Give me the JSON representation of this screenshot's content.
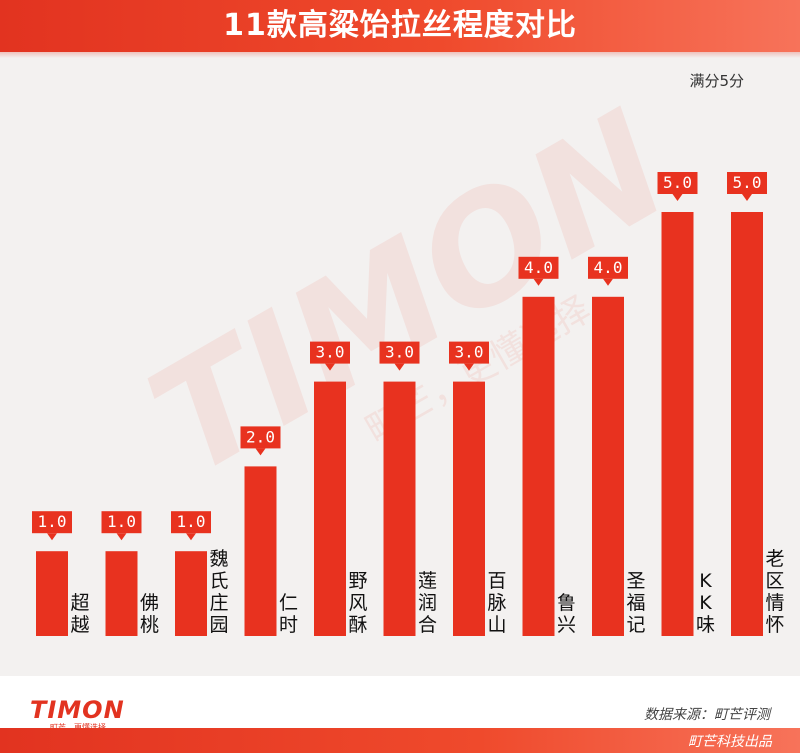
{
  "header": {
    "title": "11款高粱饴拉丝程度对比"
  },
  "unit_note": "满分5分",
  "watermark": {
    "brand": "TIMON",
    "slogan": "町芒，更懂选择。"
  },
  "colors": {
    "accent": "#e8321f",
    "label_bg": "#e8321f",
    "label_text": "#ffffff",
    "background": "#f3f1f0"
  },
  "chart_data": {
    "type": "bar",
    "title": "11款高粱饴拉丝程度对比",
    "categories": [
      "超越",
      "佛桃",
      "魏氏庄园",
      "仁时",
      "野风酥",
      "莲润合",
      "百脉山",
      "鲁兴",
      "圣福记",
      "KK味",
      "老区情怀"
    ],
    "values": [
      1.0,
      1.0,
      1.0,
      2.0,
      3.0,
      3.0,
      3.0,
      4.0,
      4.0,
      5.0,
      5.0
    ],
    "value_labels": [
      "1.0",
      "1.0",
      "1.0",
      "2.0",
      "3.0",
      "3.0",
      "3.0",
      "4.0",
      "4.0",
      "5.0",
      "5.0"
    ],
    "ylim": [
      0,
      5
    ],
    "xlabel": "",
    "ylabel": "",
    "grid": false,
    "legend": "none"
  },
  "footer": {
    "logo_text": "TIMON",
    "logo_tagline": "町芒，更懂选择。",
    "source": "数据来源：町芒评测",
    "credit": "町芒科技出品"
  }
}
